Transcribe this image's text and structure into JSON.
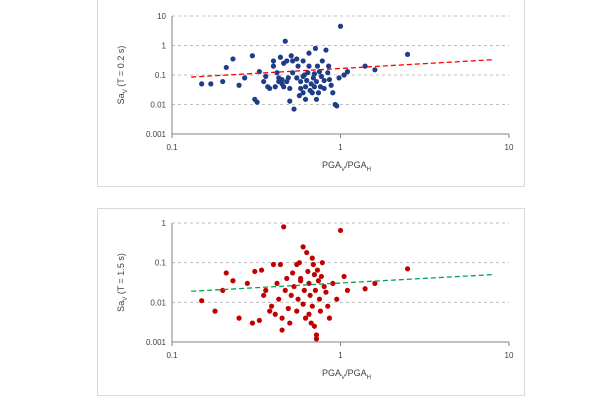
{
  "chart_data": [
    {
      "type": "scatter",
      "xlabel": "PGA_V/PGA_H",
      "ylabel": "Sa_V (T = 0.2 s)",
      "x_scale": "log",
      "y_scale": "log",
      "xlim": [
        0.1,
        10
      ],
      "ylim": [
        0.001,
        10
      ],
      "x_ticks": [
        "0.1",
        "1",
        "10"
      ],
      "y_ticks": [
        "0.001",
        "0.01",
        "0.1",
        "1",
        "10"
      ],
      "grid": "horizontal dashed",
      "series": [
        {
          "marker_color": "#1f3c88",
          "points": [
            [
              0.15,
              0.05
            ],
            [
              0.17,
              0.05
            ],
            [
              0.2,
              0.06
            ],
            [
              0.21,
              0.18
            ],
            [
              0.23,
              0.35
            ],
            [
              0.25,
              0.045
            ],
            [
              0.27,
              0.08
            ],
            [
              0.3,
              0.45
            ],
            [
              0.31,
              0.015
            ],
            [
              0.32,
              0.012
            ],
            [
              0.33,
              0.13
            ],
            [
              0.35,
              0.06
            ],
            [
              0.36,
              0.09
            ],
            [
              0.37,
              0.04
            ],
            [
              0.38,
              0.035
            ],
            [
              0.4,
              0.2
            ],
            [
              0.4,
              0.3
            ],
            [
              0.41,
              0.04
            ],
            [
              0.42,
              0.12
            ],
            [
              0.43,
              0.08
            ],
            [
              0.43,
              0.06
            ],
            [
              0.44,
              0.4
            ],
            [
              0.45,
              0.05
            ],
            [
              0.45,
              0.07
            ],
            [
              0.46,
              0.04
            ],
            [
              0.46,
              0.25
            ],
            [
              0.47,
              1.4
            ],
            [
              0.48,
              0.3
            ],
            [
              0.48,
              0.06
            ],
            [
              0.49,
              0.08
            ],
            [
              0.5,
              0.035
            ],
            [
              0.5,
              0.013
            ],
            [
              0.51,
              0.45
            ],
            [
              0.52,
              0.12
            ],
            [
              0.52,
              0.3
            ],
            [
              0.53,
              0.007
            ],
            [
              0.55,
              0.08
            ],
            [
              0.56,
              0.2
            ],
            [
              0.57,
              0.02
            ],
            [
              0.58,
              0.06
            ],
            [
              0.58,
              0.035
            ],
            [
              0.6,
              0.3
            ],
            [
              0.6,
              0.025
            ],
            [
              0.61,
              0.1
            ],
            [
              0.62,
              0.04
            ],
            [
              0.62,
              0.015
            ],
            [
              0.63,
              0.065
            ],
            [
              0.64,
              0.12
            ],
            [
              0.65,
              0.2
            ],
            [
              0.66,
              0.03
            ],
            [
              0.67,
              0.05
            ],
            [
              0.68,
              0.025
            ],
            [
              0.69,
              0.08
            ],
            [
              0.7,
              0.11
            ],
            [
              0.7,
              0.04
            ],
            [
              0.71,
              0.8
            ],
            [
              0.72,
              0.06
            ],
            [
              0.73,
              0.2
            ],
            [
              0.74,
              0.025
            ],
            [
              0.75,
              0.13
            ],
            [
              0.76,
              0.04
            ],
            [
              0.77,
              0.09
            ],
            [
              0.78,
              0.3
            ],
            [
              0.8,
              0.065
            ],
            [
              0.8,
              0.035
            ],
            [
              0.82,
              0.7
            ],
            [
              0.84,
              0.12
            ],
            [
              0.86,
              0.07
            ],
            [
              0.88,
              0.045
            ],
            [
              0.9,
              0.025
            ],
            [
              0.93,
              0.01
            ],
            [
              0.95,
              0.009
            ],
            [
              0.98,
              0.08
            ],
            [
              1.0,
              4.5
            ],
            [
              1.05,
              0.1
            ],
            [
              1.1,
              0.13
            ],
            [
              1.4,
              0.2
            ],
            [
              1.6,
              0.15
            ],
            [
              2.5,
              0.5
            ],
            [
              0.55,
              0.35
            ],
            [
              0.65,
              0.55
            ],
            [
              0.72,
              0.015
            ],
            [
              0.6,
              0.09
            ],
            [
              0.85,
              0.2
            ]
          ]
        },
        {
          "type": "line",
          "style": "dashed",
          "color": "#ff0000",
          "points": [
            [
              0.13,
              0.085
            ],
            [
              8,
              0.33
            ]
          ]
        }
      ]
    },
    {
      "type": "scatter",
      "xlabel": "PGA_V/PGA_H",
      "ylabel": "Sa_V (T = 1.5 s)",
      "x_scale": "log",
      "y_scale": "log",
      "xlim": [
        0.1,
        10
      ],
      "ylim": [
        0.001,
        1
      ],
      "x_ticks": [
        "0.1",
        "1",
        "10"
      ],
      "y_ticks": [
        "0.001",
        "0.01",
        "0.1",
        "1"
      ],
      "grid": "horizontal dashed",
      "series": [
        {
          "marker_color": "#c00000",
          "points": [
            [
              0.15,
              0.011
            ],
            [
              0.18,
              0.006
            ],
            [
              0.2,
              0.02
            ],
            [
              0.21,
              0.055
            ],
            [
              0.23,
              0.035
            ],
            [
              0.25,
              0.004
            ],
            [
              0.28,
              0.03
            ],
            [
              0.3,
              0.003
            ],
            [
              0.31,
              0.06
            ],
            [
              0.33,
              0.0035
            ],
            [
              0.34,
              0.065
            ],
            [
              0.35,
              0.015
            ],
            [
              0.36,
              0.02
            ],
            [
              0.38,
              0.006
            ],
            [
              0.39,
              0.008
            ],
            [
              0.4,
              0.09
            ],
            [
              0.41,
              0.005
            ],
            [
              0.42,
              0.03
            ],
            [
              0.43,
              0.012
            ],
            [
              0.44,
              0.09
            ],
            [
              0.45,
              0.004
            ],
            [
              0.46,
              0.8
            ],
            [
              0.47,
              0.02
            ],
            [
              0.48,
              0.04
            ],
            [
              0.49,
              0.007
            ],
            [
              0.5,
              0.003
            ],
            [
              0.51,
              0.015
            ],
            [
              0.52,
              0.055
            ],
            [
              0.53,
              0.025
            ],
            [
              0.55,
              0.006
            ],
            [
              0.56,
              0.012
            ],
            [
              0.57,
              0.1
            ],
            [
              0.58,
              0.035
            ],
            [
              0.6,
              0.25
            ],
            [
              0.6,
              0.009
            ],
            [
              0.61,
              0.02
            ],
            [
              0.62,
              0.004
            ],
            [
              0.63,
              0.18
            ],
            [
              0.64,
              0.06
            ],
            [
              0.65,
              0.03
            ],
            [
              0.66,
              0.015
            ],
            [
              0.67,
              0.003
            ],
            [
              0.68,
              0.008
            ],
            [
              0.69,
              0.09
            ],
            [
              0.7,
              0.05
            ],
            [
              0.7,
              0.0025
            ],
            [
              0.71,
              0.02
            ],
            [
              0.72,
              0.0015
            ],
            [
              0.73,
              0.065
            ],
            [
              0.74,
              0.035
            ],
            [
              0.75,
              0.012
            ],
            [
              0.76,
              0.006
            ],
            [
              0.77,
              0.045
            ],
            [
              0.78,
              0.1
            ],
            [
              0.8,
              0.025
            ],
            [
              0.82,
              0.018
            ],
            [
              0.84,
              0.008
            ],
            [
              0.86,
              0.004
            ],
            [
              0.9,
              0.03
            ],
            [
              0.95,
              0.012
            ],
            [
              1.0,
              0.65
            ],
            [
              1.05,
              0.045
            ],
            [
              1.1,
              0.02
            ],
            [
              1.4,
              0.022
            ],
            [
              1.6,
              0.03
            ],
            [
              2.5,
              0.07
            ],
            [
              0.55,
              0.09
            ],
            [
              0.65,
              0.005
            ],
            [
              0.72,
              0.0012
            ],
            [
              0.45,
              0.002
            ],
            [
              0.58,
              0.04
            ],
            [
              0.68,
              0.13
            ]
          ]
        },
        {
          "type": "line",
          "style": "dashed",
          "color": "#00a651",
          "points": [
            [
              0.13,
              0.019
            ],
            [
              8,
              0.05
            ]
          ]
        }
      ]
    }
  ]
}
